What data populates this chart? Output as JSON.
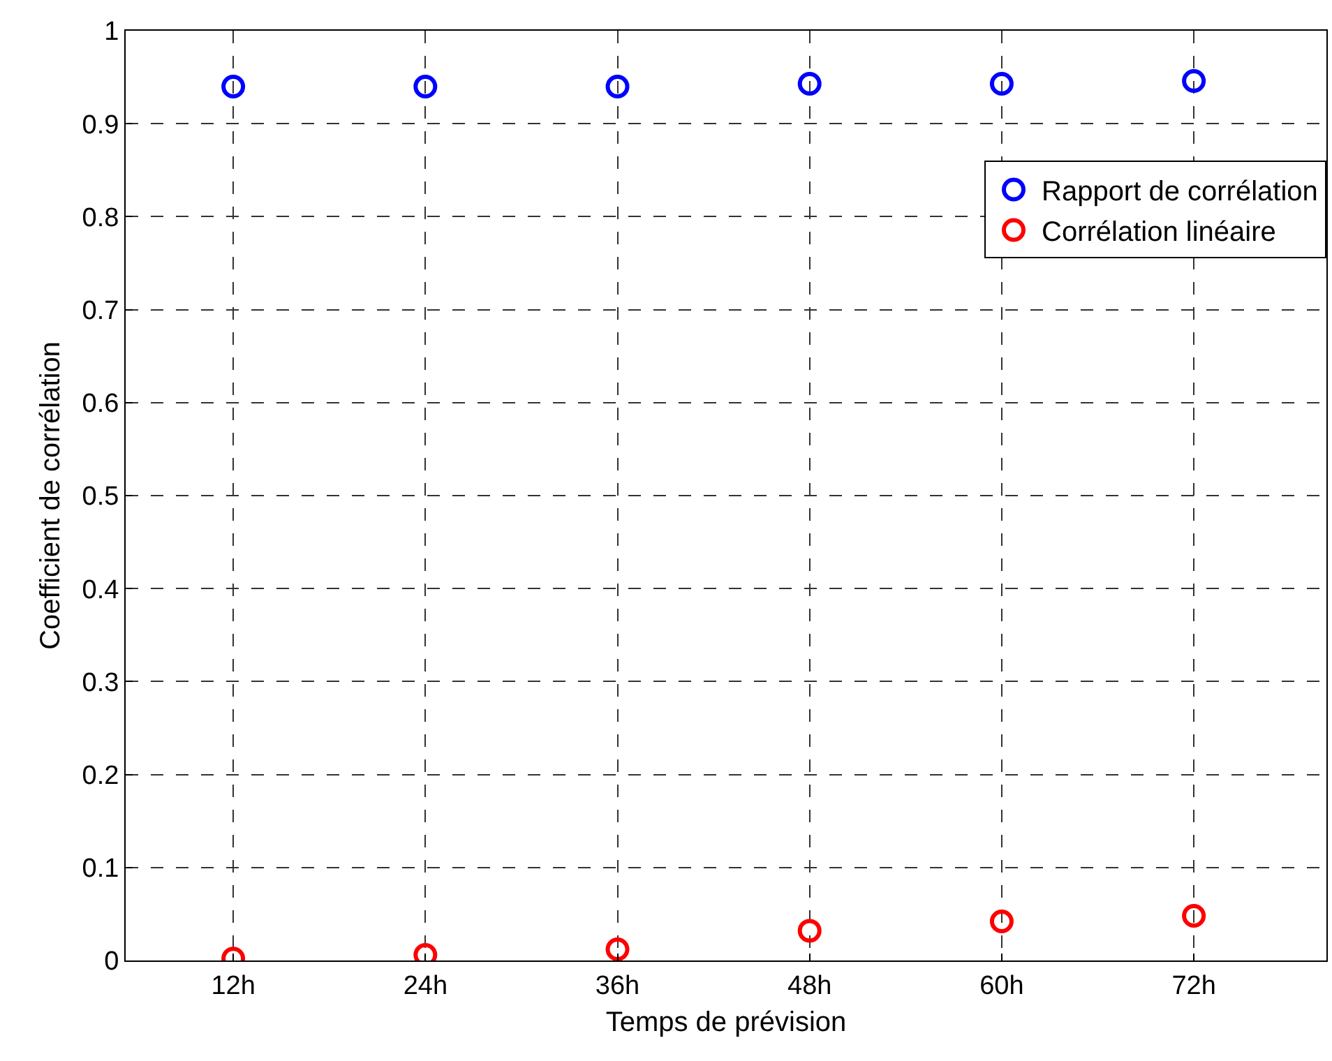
{
  "chart_data": {
    "type": "scatter",
    "xlabel": "Temps de prévision",
    "ylabel": "Coefficient de corrélation",
    "categories": [
      "12h",
      "24h",
      "36h",
      "48h",
      "60h",
      "72h"
    ],
    "series": [
      {
        "name": "Rapport de corrélation",
        "color": "#0000ff",
        "values": [
          0.94,
          0.94,
          0.94,
          0.943,
          0.943,
          0.946
        ]
      },
      {
        "name": "Corrélation linéaire",
        "color": "#ff0000",
        "values": [
          0.002,
          0.006,
          0.012,
          0.032,
          0.042,
          0.048
        ]
      }
    ],
    "ylim": [
      0,
      1
    ],
    "yticks": [
      0,
      0.1,
      0.2,
      0.3,
      0.4,
      0.5,
      0.6,
      0.7,
      0.8,
      0.9,
      1
    ],
    "grid": true,
    "legend": "top right",
    "marker": "circle"
  }
}
